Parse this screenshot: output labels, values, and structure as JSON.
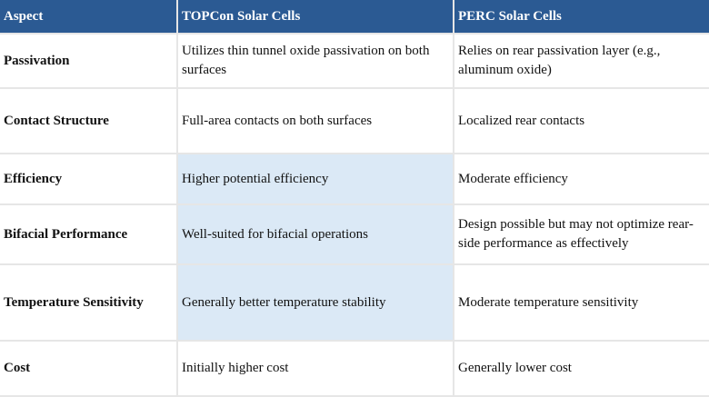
{
  "table": {
    "headers": [
      "Aspect",
      "TOPCon Solar Cells",
      "PERC Solar Cells"
    ],
    "rows": [
      {
        "aspect": "Passivation",
        "topcon": "Utilizes thin tunnel oxide passivation on both surfaces",
        "perc": "Relies on rear passivation layer (e.g., aluminum oxide)"
      },
      {
        "aspect": "Contact Structure",
        "topcon": "Full-area contacts on both surfaces",
        "perc": "Localized rear contacts"
      },
      {
        "aspect": "Efficiency",
        "topcon": "Higher potential efficiency",
        "perc": "Moderate efficiency"
      },
      {
        "aspect": "Bifacial Performance",
        "topcon": "Well-suited for bifacial operations",
        "perc": "Design possible but may not optimize rear-side performance as effectively"
      },
      {
        "aspect": "Temperature Sensitivity",
        "topcon": "Generally better temperature stability",
        "perc": "Moderate temperature sensitivity"
      },
      {
        "aspect": "Cost",
        "topcon": "Initially higher cost",
        "perc": "Generally lower cost"
      }
    ]
  },
  "colors": {
    "header_bg": "#2b5a93",
    "header_text": "#ffffff",
    "highlight_bg": "#dbe9f6",
    "grid_line": "#e6e6e6"
  }
}
